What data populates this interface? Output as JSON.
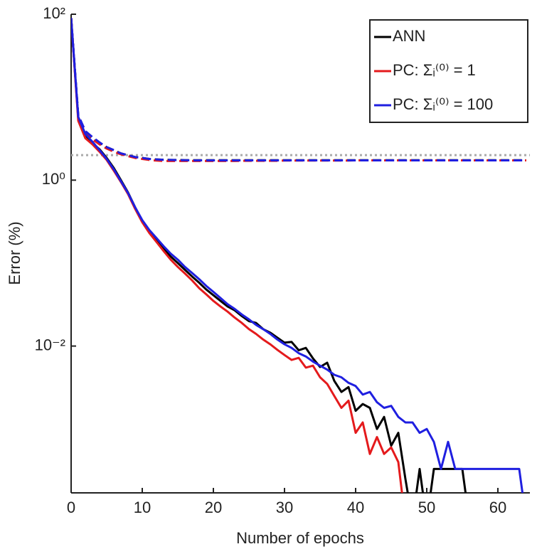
{
  "chart_data": {
    "type": "line",
    "log_y": true,
    "xlabel": "Number of epochs",
    "ylabel": "Error (%)",
    "xlim": [
      0,
      64.5
    ],
    "xticks": [
      0,
      10,
      20,
      30,
      40,
      50,
      60
    ],
    "ylim": [
      0.00017,
      100
    ],
    "yticks": [
      {
        "value": 0.01,
        "label": "10⁻²"
      },
      {
        "value": 1,
        "label": "10⁰"
      },
      {
        "value": 100,
        "label": "10²"
      }
    ],
    "legend": "upper right",
    "reference": 2.0,
    "reference_color": "#aaaaaa",
    "x": [
      0,
      1,
      2,
      3,
      4,
      5,
      6,
      7,
      8,
      9,
      10,
      11,
      12,
      13,
      14,
      15,
      16,
      17,
      18,
      19,
      20,
      21,
      22,
      23,
      24,
      25,
      26,
      27,
      28,
      29,
      30,
      31,
      32,
      33,
      34,
      35,
      36,
      37,
      38,
      39,
      40,
      41,
      42,
      43,
      44,
      45,
      46,
      47,
      48,
      49,
      50,
      51,
      52,
      53,
      54,
      55,
      56,
      57,
      58,
      59,
      60,
      61,
      62,
      63,
      64
    ],
    "series": [
      {
        "name": "ANN",
        "color": "#000000",
        "values": [
          90,
          5.6,
          3.5,
          2.8,
          2.35,
          1.85,
          1.4,
          1.0,
          0.71,
          0.47,
          0.32,
          0.24,
          0.19,
          0.15,
          0.12,
          0.1,
          0.083,
          0.069,
          0.058,
          0.048,
          0.041,
          0.035,
          0.03,
          0.027,
          0.023,
          0.02,
          0.019,
          0.016,
          0.0145,
          0.0126,
          0.011,
          0.0112,
          0.0089,
          0.0095,
          0.0071,
          0.0056,
          0.0063,
          0.0038,
          0.0028,
          0.0032,
          0.00166,
          0.002,
          0.0018,
          0.001,
          0.0014,
          0.00063,
          0.0009,
          0.00025,
          0,
          0.00033,
          0,
          0.00033,
          0.00033,
          0.00033,
          0.00033,
          0.00033,
          0,
          0,
          0,
          0,
          0,
          0,
          0,
          0,
          0
        ],
        "test_values": [
          90,
          6,
          3.8,
          3.2,
          2.8,
          2.5,
          2.3,
          2.1,
          2.0,
          1.9,
          1.85,
          1.8,
          1.78,
          1.76,
          1.75,
          1.75,
          1.74,
          1.74,
          1.74,
          1.74,
          1.74,
          1.74,
          1.74,
          1.74,
          1.74,
          1.74,
          1.74,
          1.74,
          1.74,
          1.74,
          1.74,
          1.74,
          1.74,
          1.74,
          1.74,
          1.74,
          1.74,
          1.74,
          1.74,
          1.74,
          1.74,
          1.74,
          1.74,
          1.74,
          1.74,
          1.74,
          1.74,
          1.74,
          1.74,
          1.74,
          1.74,
          1.74,
          1.74,
          1.74,
          1.74,
          1.74,
          1.74,
          1.74,
          1.74,
          1.74,
          1.74,
          1.74,
          1.74,
          1.74,
          1.74
        ]
      },
      {
        "name": "PC: Σᵢ⁽⁰⁾ = 1",
        "color": "#e41a1c",
        "values": [
          90,
          5.2,
          3.2,
          2.7,
          2.2,
          1.75,
          1.3,
          0.95,
          0.68,
          0.45,
          0.31,
          0.23,
          0.18,
          0.14,
          0.11,
          0.09,
          0.075,
          0.062,
          0.05,
          0.042,
          0.035,
          0.03,
          0.026,
          0.022,
          0.019,
          0.016,
          0.014,
          0.012,
          0.0105,
          0.009,
          0.0078,
          0.0068,
          0.0072,
          0.0055,
          0.0058,
          0.0042,
          0.0035,
          0.0025,
          0.0018,
          0.0022,
          0.0009,
          0.0012,
          0.0005,
          0.0008,
          0.0005,
          0.0006,
          0.0004,
          0,
          0,
          0,
          0,
          0,
          0,
          0,
          0,
          0,
          0,
          0,
          0,
          0,
          0,
          0,
          0,
          0,
          0
        ],
        "test_values": [
          90,
          5.8,
          3.7,
          3.1,
          2.7,
          2.4,
          2.2,
          2.05,
          1.95,
          1.85,
          1.8,
          1.75,
          1.72,
          1.7,
          1.7,
          1.7,
          1.7,
          1.7,
          1.7,
          1.7,
          1.7,
          1.7,
          1.7,
          1.7,
          1.71,
          1.71,
          1.71,
          1.71,
          1.71,
          1.71,
          1.72,
          1.72,
          1.72,
          1.72,
          1.72,
          1.72,
          1.72,
          1.72,
          1.72,
          1.72,
          1.73,
          1.73,
          1.73,
          1.73,
          1.73,
          1.73,
          1.73,
          1.73,
          1.73,
          1.73,
          1.73,
          1.73,
          1.73,
          1.73,
          1.73,
          1.73,
          1.73,
          1.73,
          1.73,
          1.73,
          1.73,
          1.73,
          1.73,
          1.73,
          1.73
        ]
      },
      {
        "name": "PC: Σᵢ⁽⁰⁾ = 100",
        "color": "#1f1fe0",
        "values": [
          90,
          5.8,
          3.6,
          2.9,
          2.3,
          1.8,
          1.35,
          0.97,
          0.7,
          0.47,
          0.33,
          0.25,
          0.2,
          0.16,
          0.13,
          0.11,
          0.09,
          0.076,
          0.064,
          0.053,
          0.045,
          0.038,
          0.032,
          0.028,
          0.024,
          0.021,
          0.018,
          0.016,
          0.014,
          0.012,
          0.0105,
          0.0095,
          0.0082,
          0.0075,
          0.0065,
          0.0058,
          0.0052,
          0.0045,
          0.0042,
          0.0036,
          0.0033,
          0.0026,
          0.0028,
          0.0021,
          0.0018,
          0.0019,
          0.0014,
          0.0012,
          0.0012,
          0.0009,
          0.001,
          0.0007,
          0.00033,
          0.0007,
          0.00033,
          0.00033,
          0.00033,
          0.00033,
          0.00033,
          0.00033,
          0.00033,
          0.00033,
          0.00033,
          0.00033,
          0
        ],
        "test_values": [
          90,
          6.1,
          3.9,
          3.3,
          2.85,
          2.5,
          2.3,
          2.1,
          2.0,
          1.9,
          1.85,
          1.8,
          1.78,
          1.76,
          1.75,
          1.74,
          1.74,
          1.73,
          1.73,
          1.73,
          1.73,
          1.73,
          1.73,
          1.73,
          1.73,
          1.73,
          1.73,
          1.73,
          1.73,
          1.73,
          1.73,
          1.73,
          1.73,
          1.73,
          1.73,
          1.73,
          1.73,
          1.73,
          1.73,
          1.73,
          1.73,
          1.73,
          1.73,
          1.73,
          1.73,
          1.73,
          1.73,
          1.73,
          1.73,
          1.73,
          1.73,
          1.73,
          1.73,
          1.73,
          1.73,
          1.73,
          1.73,
          1.73,
          1.73,
          1.73,
          1.73,
          1.73,
          1.73,
          1.73,
          1.73
        ]
      }
    ]
  }
}
